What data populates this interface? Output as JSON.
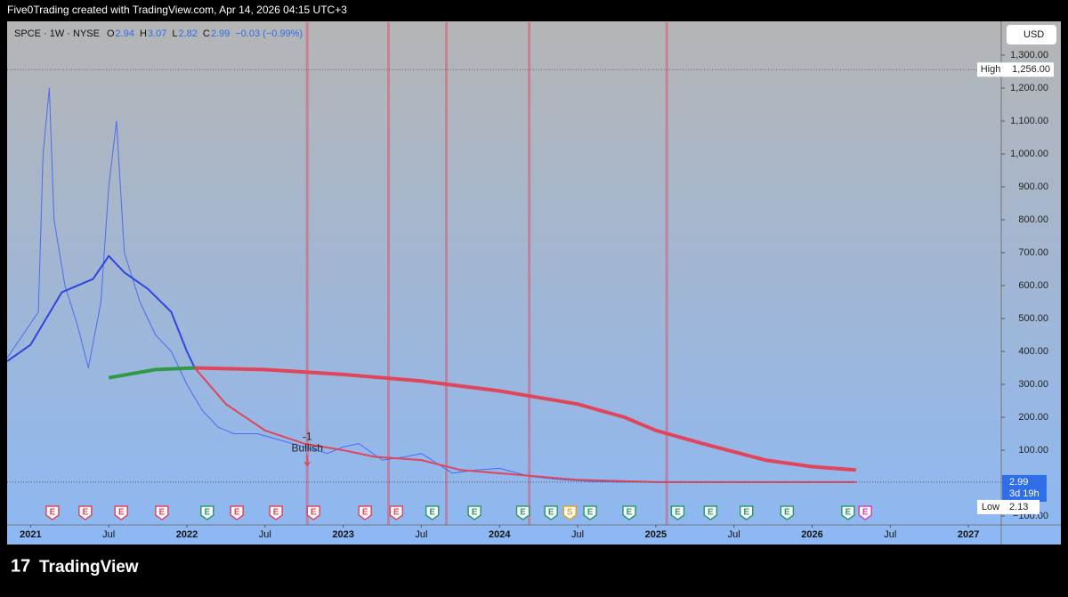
{
  "header": {
    "text": "Five0Trading created with TradingView.com, Apr 14, 2026 04:15 UTC+3"
  },
  "footer": {
    "brand": "TradingView"
  },
  "chart_data": {
    "type": "line",
    "legend": {
      "symbol": "SPCE · 1W · NYSE",
      "ohlc": [
        {
          "label": "O",
          "value": 2.94
        },
        {
          "label": "H",
          "value": 3.07
        },
        {
          "label": "L",
          "value": 2.82
        },
        {
          "label": "C",
          "value": 2.99
        }
      ],
      "change": "−0.03 (−0.99%)"
    },
    "currency": "USD",
    "xlim": [
      2020.85,
      2027.21
    ],
    "ylim": [
      -127,
      1400
    ],
    "xticks": [
      2021,
      {
        "value": 2021.5,
        "label": "Jul"
      },
      2022,
      {
        "value": 2022.5,
        "label": "Jul"
      },
      2023,
      {
        "value": 2023.5,
        "label": "Jul"
      },
      2024,
      {
        "value": 2024.5,
        "label": "Jul"
      },
      2025,
      {
        "value": 2025.5,
        "label": "Jul"
      },
      2026,
      {
        "value": 2026.5,
        "label": "Jul"
      },
      2027
    ],
    "yticks": [
      {
        "value": -100,
        "label": "−100.00"
      },
      {
        "value": 100,
        "label": "100.00"
      },
      {
        "value": 200,
        "label": "200.00"
      },
      {
        "value": 300,
        "label": "300.00"
      },
      {
        "value": 400,
        "label": "400.00"
      },
      {
        "value": 500,
        "label": "500.00"
      },
      {
        "value": 600,
        "label": "600.00"
      },
      {
        "value": 700,
        "label": "700.00"
      },
      {
        "value": 800,
        "label": "800.00"
      },
      {
        "value": 900,
        "label": "900.00"
      },
      {
        "value": 1000,
        "label": "1,000.00"
      },
      {
        "value": 1100,
        "label": "1,100.00"
      },
      {
        "value": 1200,
        "label": "1,200.00"
      },
      {
        "value": 1300,
        "label": "1,300.00"
      }
    ],
    "series": [
      {
        "name": "Price",
        "color": "#4a6cf0",
        "width": 1,
        "x": [
          2020.85,
          2020.95,
          2021.05,
          2021.08,
          2021.12,
          2021.15,
          2021.22,
          2021.3,
          2021.37,
          2021.45,
          2021.5,
          2021.55,
          2021.6,
          2021.7,
          2021.8,
          2021.9,
          2022.0,
          2022.1,
          2022.2,
          2022.3,
          2022.45,
          2022.6,
          2022.75,
          2022.9,
          2023.0,
          2023.1,
          2023.25,
          2023.4,
          2023.5,
          2023.6,
          2023.7,
          2023.85,
          2024.0,
          2024.2,
          2024.4,
          2024.6,
          2024.8,
          2025.0,
          2025.3,
          2025.6,
          2026.0,
          2026.28
        ],
        "values": [
          380,
          450,
          520,
          1000,
          1200,
          800,
          600,
          480,
          350,
          550,
          900,
          1100,
          700,
          550,
          450,
          400,
          300,
          220,
          170,
          150,
          150,
          130,
          110,
          90,
          110,
          120,
          70,
          80,
          90,
          60,
          30,
          40,
          45,
          20,
          10,
          5,
          3,
          3,
          3,
          3,
          3,
          2.99
        ]
      },
      {
        "name": "MA fast",
        "color": "#2f45e0",
        "width": 2,
        "x": [
          2020.85,
          2021.0,
          2021.2,
          2021.4,
          2021.5,
          2021.6,
          2021.75,
          2021.9,
          2022.0,
          2022.05
        ],
        "values": [
          370,
          420,
          580,
          620,
          690,
          640,
          590,
          520,
          400,
          350
        ]
      },
      {
        "name": "MA fast",
        "color": "#e0455a",
        "width": 2,
        "x": [
          2022.05,
          2022.25,
          2022.5,
          2022.75,
          2023.0,
          2023.2,
          2023.5,
          2023.75,
          2024.0,
          2024.5,
          2025.0,
          2026.28
        ],
        "values": [
          350,
          240,
          160,
          120,
          100,
          80,
          70,
          40,
          30,
          10,
          3,
          3
        ]
      },
      {
        "name": "MA slow",
        "color": "#2f9a45",
        "width": 4,
        "x": [
          2021.5,
          2021.8,
          2022.05
        ],
        "values": [
          320,
          345,
          350
        ]
      },
      {
        "name": "MA slow",
        "color": "#e0455a",
        "width": 4,
        "x": [
          2022.05,
          2022.5,
          2023.0,
          2023.5,
          2024.0,
          2024.5,
          2024.8,
          2025.0,
          2025.3,
          2025.7,
          2026.0,
          2026.28
        ],
        "values": [
          350,
          345,
          330,
          310,
          280,
          240,
          200,
          160,
          120,
          70,
          50,
          40
        ]
      }
    ],
    "highlight_lines": [
      2022.77,
      2023.29,
      2023.66,
      2024.19,
      2025.07
    ],
    "annotation": {
      "x": 2022.77,
      "y": 140,
      "lines": [
        "-1",
        "Bullish"
      ]
    },
    "high": {
      "label": "High",
      "value": 1256,
      "value_label": "1,256.00"
    },
    "low": {
      "label": "Low",
      "value": 2.13
    },
    "last": {
      "value": 2.99,
      "countdown": "3d 19h"
    },
    "events": [
      {
        "x": 2021.14,
        "label": "E",
        "color": "#e0455a"
      },
      {
        "x": 2021.35,
        "label": "E",
        "color": "#e0455a"
      },
      {
        "x": 2021.58,
        "label": "E",
        "color": "#e0455a"
      },
      {
        "x": 2021.84,
        "label": "E",
        "color": "#e0455a"
      },
      {
        "x": 2022.13,
        "label": "E",
        "color": "#2a9a6a"
      },
      {
        "x": 2022.32,
        "label": "E",
        "color": "#e0455a"
      },
      {
        "x": 2022.57,
        "label": "E",
        "color": "#e0455a"
      },
      {
        "x": 2022.81,
        "label": "E",
        "color": "#e0455a"
      },
      {
        "x": 2023.14,
        "label": "E",
        "color": "#e0455a"
      },
      {
        "x": 2023.34,
        "label": "E",
        "color": "#e0455a"
      },
      {
        "x": 2023.57,
        "label": "E",
        "color": "#2a9a6a"
      },
      {
        "x": 2023.84,
        "label": "E",
        "color": "#2a9a6a"
      },
      {
        "x": 2024.15,
        "label": "E",
        "color": "#2a9a6a"
      },
      {
        "x": 2024.33,
        "label": "E",
        "color": "#2a9a6a"
      },
      {
        "x": 2024.45,
        "label": "S",
        "color": "#e6a020"
      },
      {
        "x": 2024.58,
        "label": "E",
        "color": "#2a9a6a"
      },
      {
        "x": 2024.83,
        "label": "E",
        "color": "#2a9a6a"
      },
      {
        "x": 2025.14,
        "label": "E",
        "color": "#2a9a6a"
      },
      {
        "x": 2025.35,
        "label": "E",
        "color": "#2a9a6a"
      },
      {
        "x": 2025.58,
        "label": "E",
        "color": "#2a9a6a"
      },
      {
        "x": 2025.84,
        "label": "E",
        "color": "#2a9a6a"
      },
      {
        "x": 2026.23,
        "label": "E",
        "color": "#2a9a6a"
      },
      {
        "x": 2026.34,
        "label": "E",
        "color": "#d040c0"
      }
    ]
  }
}
